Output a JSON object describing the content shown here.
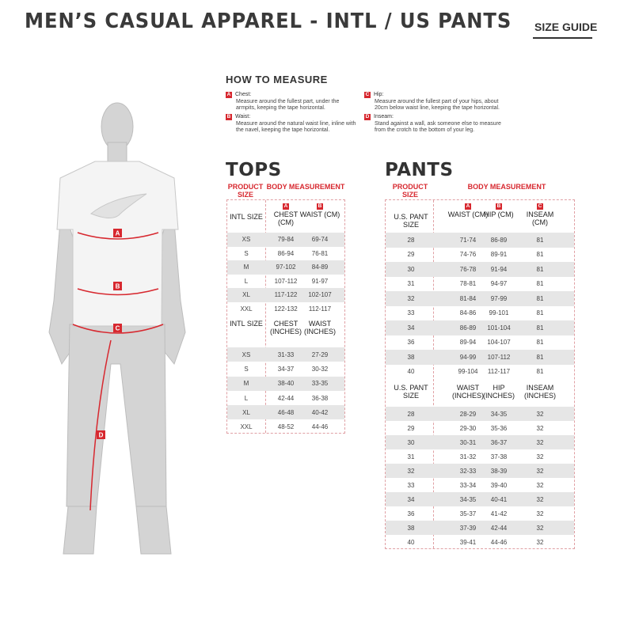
{
  "header": {
    "title": "MEN’S CASUAL APPAREL - INTL / US PANTS",
    "size_guide": "SIZE GUIDE"
  },
  "how_to_measure": {
    "title": "HOW TO MEASURE",
    "items": [
      {
        "letter": "A",
        "label": "Chest:",
        "desc": "Measure around the fullest part, under the armpits, keeping the tape horizontal."
      },
      {
        "letter": "B",
        "label": "Waist:",
        "desc": "Measure around the natural waist line, inline with the navel, keeping the tape horizontal."
      },
      {
        "letter": "C",
        "label": "Hip:",
        "desc": "Measure around the fullest part of your hips, about 20cm below waist line, keeping the tape horizontal."
      },
      {
        "letter": "D",
        "label": "Inseam:",
        "desc": "Stand against a wall, ask someone else to measure from the crotch to the bottom of your leg."
      }
    ]
  },
  "figure": {
    "markers": [
      "A",
      "B",
      "C",
      "D"
    ],
    "accent": "#d7282f"
  },
  "tops": {
    "title": "TOPS",
    "product_size": "PRODUCT SIZE",
    "body_measurement": "BODY MEASUREMENT",
    "letters": [
      "A",
      "B"
    ],
    "cm": {
      "headers": [
        "INTL SIZE",
        "CHEST (CM)",
        "WAIST (CM)"
      ],
      "rows": [
        [
          "XS",
          "79-84",
          "69-74"
        ],
        [
          "S",
          "86-94",
          "76-81"
        ],
        [
          "M",
          "97-102",
          "84-89"
        ],
        [
          "L",
          "107-112",
          "91-97"
        ],
        [
          "XL",
          "117-122",
          "102-107"
        ],
        [
          "XXL",
          "122-132",
          "112-117"
        ]
      ]
    },
    "inches": {
      "headers": [
        "INTL SIZE",
        "CHEST (INCHES)",
        "WAIST (INCHES)"
      ],
      "rows": [
        [
          "XS",
          "31-33",
          "27-29"
        ],
        [
          "S",
          "34-37",
          "30-32"
        ],
        [
          "M",
          "38-40",
          "33-35"
        ],
        [
          "L",
          "42-44",
          "36-38"
        ],
        [
          "XL",
          "46-48",
          "40-42"
        ],
        [
          "XXL",
          "48-52",
          "44-46"
        ]
      ]
    }
  },
  "pants": {
    "title": "PANTS",
    "product_size": "PRODUCT SIZE",
    "body_measurement": "BODY MEASUREMENT",
    "letters": [
      "A",
      "B",
      "C"
    ],
    "cm": {
      "headers": [
        "U.S. PANT SIZE",
        "WAIST (CM)",
        "HIP (CM)",
        "INSEAM (CM)"
      ],
      "rows": [
        [
          "28",
          "71-74",
          "86-89",
          "81"
        ],
        [
          "29",
          "74-76",
          "89-91",
          "81"
        ],
        [
          "30",
          "76-78",
          "91-94",
          "81"
        ],
        [
          "31",
          "78-81",
          "94-97",
          "81"
        ],
        [
          "32",
          "81-84",
          "97-99",
          "81"
        ],
        [
          "33",
          "84-86",
          "99-101",
          "81"
        ],
        [
          "34",
          "86-89",
          "101-104",
          "81"
        ],
        [
          "36",
          "89-94",
          "104-107",
          "81"
        ],
        [
          "38",
          "94-99",
          "107-112",
          "81"
        ],
        [
          "40",
          "99-104",
          "112-117",
          "81"
        ]
      ]
    },
    "inches": {
      "headers": [
        "U.S. PANT SIZE",
        "WAIST (INCHES)",
        "HIP (INCHES)",
        "INSEAM (INCHES)"
      ],
      "rows": [
        [
          "28",
          "28-29",
          "34-35",
          "32"
        ],
        [
          "29",
          "29-30",
          "35-36",
          "32"
        ],
        [
          "30",
          "30-31",
          "36-37",
          "32"
        ],
        [
          "31",
          "31-32",
          "37-38",
          "32"
        ],
        [
          "32",
          "32-33",
          "38-39",
          "32"
        ],
        [
          "33",
          "33-34",
          "39-40",
          "32"
        ],
        [
          "34",
          "34-35",
          "40-41",
          "32"
        ],
        [
          "36",
          "35-37",
          "41-42",
          "32"
        ],
        [
          "38",
          "37-39",
          "42-44",
          "32"
        ],
        [
          "40",
          "39-41",
          "44-46",
          "32"
        ]
      ]
    }
  }
}
